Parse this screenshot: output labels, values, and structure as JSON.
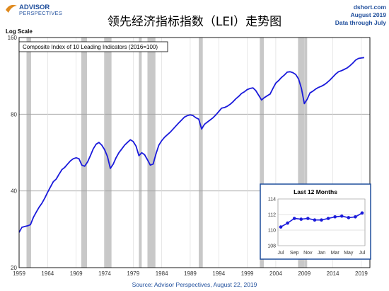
{
  "header": {
    "logo_line1": "ADVISOR",
    "logo_line2": "PERSPECTIVES",
    "site": "dshort.com",
    "date": "August 2019",
    "through": "Data through July",
    "title": "领先经济指标指数（LEI）走势图"
  },
  "footer": {
    "source": "Source: Advisor Perspectives, August 22, 2019"
  },
  "colors": {
    "line": "#1a1adb",
    "recession": "#c8c8c8",
    "grid": "#d9d9d9",
    "inset_frame": "#1f4e9c"
  },
  "chart_data": [
    {
      "type": "line",
      "title": "领先经济指标指数（LEI）走势图",
      "ylabel": "Log Scale",
      "legend": "Composite Index of 10 Leading Indicators (2016=100)",
      "y_scale": "log",
      "ylim": [
        20,
        160
      ],
      "yticks": [
        20,
        40,
        80,
        160
      ],
      "xlim": [
        1959,
        2020.5
      ],
      "xticks": [
        "1959",
        "1964",
        "1969",
        "1974",
        "1979",
        "1984",
        "1989",
        "1994",
        "1999",
        "2004",
        "2009",
        "2014",
        "2019"
      ],
      "grid": true,
      "recessions": [
        [
          1960.3,
          1961.1
        ],
        [
          1969.9,
          1970.9
        ],
        [
          1973.9,
          1975.2
        ],
        [
          1980.0,
          1980.5
        ],
        [
          1981.5,
          1982.9
        ],
        [
          1990.5,
          1991.2
        ],
        [
          2001.2,
          2001.9
        ],
        [
          2007.9,
          2009.5
        ]
      ],
      "series": [
        {
          "x": [
            1959.0,
            1959.5,
            1960.0,
            1960.5,
            1961.0,
            1961.5,
            1962.0,
            1962.5,
            1963.0,
            1963.5,
            1964.0,
            1964.5,
            1965.0,
            1965.5,
            1966.0,
            1966.5,
            1967.0,
            1967.5,
            1968.0,
            1968.5,
            1969.0,
            1969.5,
            1970.0,
            1970.5,
            1971.0,
            1971.5,
            1972.0,
            1972.5,
            1973.0,
            1973.5,
            1974.0,
            1974.5,
            1975.0,
            1975.5,
            1976.0,
            1976.5,
            1977.0,
            1977.5,
            1978.0,
            1978.5,
            1979.0,
            1979.5,
            1980.0,
            1980.5,
            1981.0,
            1981.5,
            1982.0,
            1982.5,
            1983.0,
            1983.5,
            1984.0,
            1984.5,
            1985.0,
            1985.5,
            1986.0,
            1986.5,
            1987.0,
            1987.5,
            1988.0,
            1988.5,
            1989.0,
            1989.5,
            1990.0,
            1990.5,
            1991.0,
            1991.5,
            1992.0,
            1992.5,
            1993.0,
            1993.5,
            1994.0,
            1994.5,
            1995.0,
            1995.5,
            1996.0,
            1996.5,
            1997.0,
            1997.5,
            1998.0,
            1998.5,
            1999.0,
            1999.5,
            2000.0,
            2000.5,
            2001.0,
            2001.5,
            2002.0,
            2002.5,
            2003.0,
            2003.5,
            2004.0,
            2004.5,
            2005.0,
            2005.5,
            2006.0,
            2006.5,
            2007.0,
            2007.5,
            2008.0,
            2008.5,
            2009.0,
            2009.5,
            2010.0,
            2010.5,
            2011.0,
            2011.5,
            2012.0,
            2012.5,
            2013.0,
            2013.5,
            2014.0,
            2014.5,
            2015.0,
            2015.5,
            2016.0,
            2016.5,
            2017.0,
            2017.5,
            2018.0,
            2018.5,
            2019.0,
            2019.5
          ],
          "y": [
            27.5,
            28.8,
            29.0,
            29.2,
            29.5,
            31.5,
            33.0,
            34.5,
            35.8,
            37.5,
            39.5,
            41.5,
            43.5,
            44.5,
            46.5,
            48.5,
            49.5,
            51.0,
            52.5,
            53.5,
            54.0,
            53.5,
            50.5,
            50.0,
            52.0,
            55.0,
            58.5,
            61.0,
            62.0,
            60.5,
            58.0,
            54.5,
            49.0,
            51.0,
            54.0,
            56.5,
            58.5,
            60.5,
            62.0,
            63.5,
            62.5,
            60.0,
            55.0,
            56.5,
            55.5,
            53.0,
            50.5,
            51.0,
            56.0,
            60.5,
            63.0,
            65.0,
            66.5,
            68.0,
            70.0,
            72.0,
            74.0,
            76.0,
            78.0,
            79.0,
            79.5,
            79.0,
            77.5,
            76.5,
            70.0,
            73.0,
            74.5,
            76.0,
            77.5,
            79.5,
            82.0,
            84.5,
            85.0,
            86.0,
            87.5,
            89.5,
            92.0,
            94.0,
            96.5,
            98.0,
            100.0,
            101.0,
            101.5,
            99.0,
            95.0,
            91.0,
            93.0,
            94.5,
            96.0,
            101.0,
            106.0,
            108.5,
            111.5,
            114.0,
            117.0,
            117.5,
            116.5,
            114.5,
            110.0,
            101.0,
            88.0,
            91.5,
            97.0,
            98.5,
            100.5,
            102.0,
            103.0,
            104.5,
            106.5,
            109.0,
            112.0,
            115.0,
            117.5,
            118.5,
            120.0,
            121.5,
            124.0,
            127.0,
            130.5,
            132.5,
            133.0,
            133.5
          ]
        }
      ]
    },
    {
      "type": "line",
      "title": "Last 12 Months",
      "ylim": [
        108,
        114
      ],
      "yticks": [
        108,
        110,
        112,
        114
      ],
      "xticks": [
        "Jul",
        "Sep",
        "Nov",
        "Jan",
        "Mar",
        "May",
        "Jul"
      ],
      "grid": true,
      "series": [
        {
          "x": [
            "Jul",
            "Aug",
            "Sep",
            "Oct",
            "Nov",
            "Dec",
            "Jan",
            "Feb",
            "Mar",
            "Apr",
            "May",
            "Jun",
            "Jul"
          ],
          "y": [
            110.4,
            110.9,
            111.5,
            111.4,
            111.5,
            111.3,
            111.3,
            111.5,
            111.7,
            111.8,
            111.6,
            111.7,
            112.2
          ]
        }
      ]
    }
  ]
}
